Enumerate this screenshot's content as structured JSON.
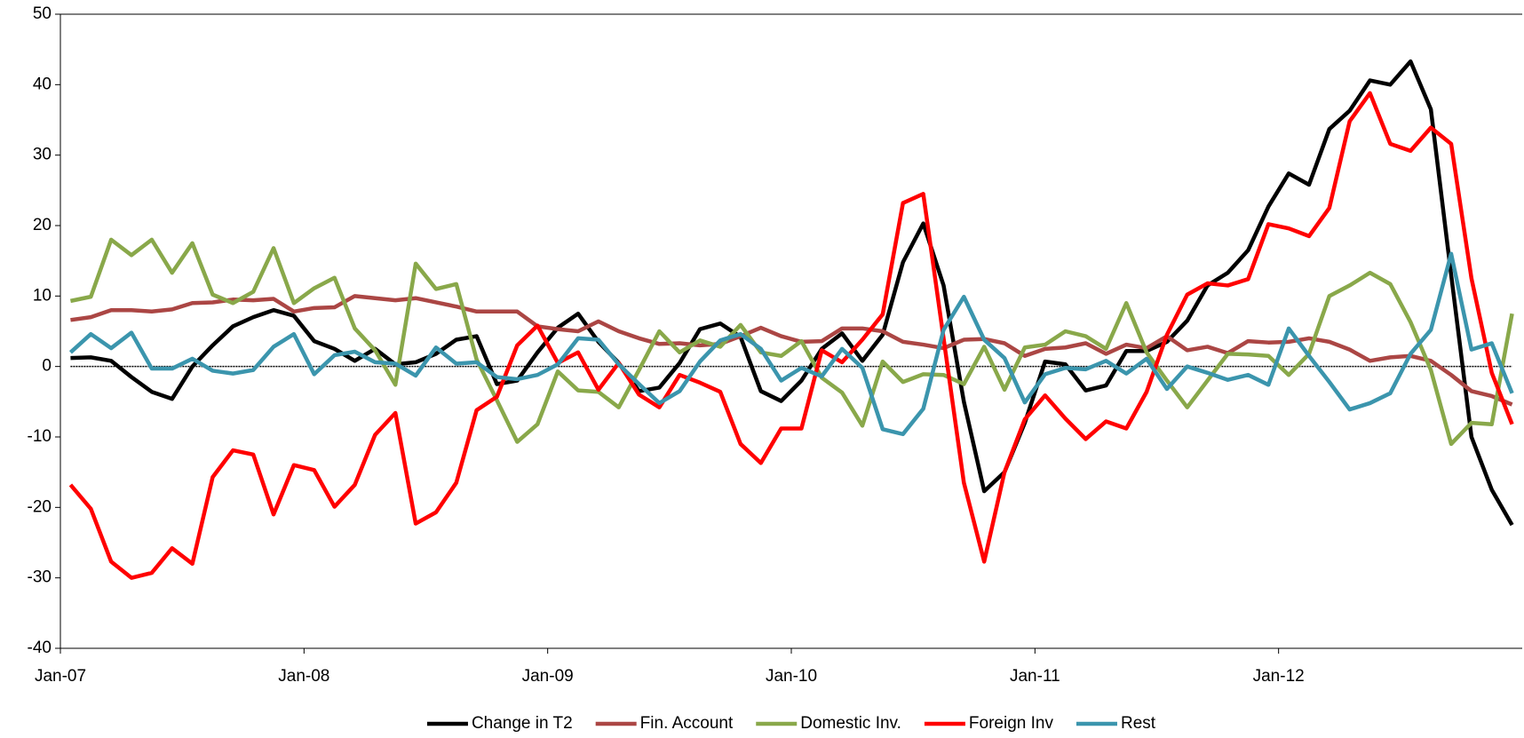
{
  "chart_data": {
    "type": "line",
    "categories": [
      "Jan-07",
      null,
      null,
      null,
      null,
      null,
      null,
      null,
      null,
      null,
      null,
      null,
      "Jan-08",
      null,
      null,
      null,
      null,
      null,
      null,
      null,
      null,
      null,
      null,
      null,
      "Jan-09",
      null,
      null,
      null,
      null,
      null,
      null,
      null,
      null,
      null,
      null,
      null,
      "Jan-10",
      null,
      null,
      null,
      null,
      null,
      null,
      null,
      null,
      null,
      null,
      null,
      "Jan-11",
      null,
      null,
      null,
      null,
      null,
      null,
      null,
      null,
      null,
      null,
      null,
      "Jan-12",
      null,
      null,
      null,
      null,
      null,
      null,
      null,
      null,
      null,
      null,
      null
    ],
    "series": [
      {
        "name": "Change in T2",
        "color": "#000000",
        "values": [
          1.2,
          1.3,
          0.8,
          -1.5,
          -3.6,
          -4.6,
          0,
          3,
          5.7,
          7,
          8,
          7.2,
          3.6,
          2.5,
          0.8,
          2.5,
          0.3,
          0.6,
          1.8,
          3.8,
          4.3,
          -2.5,
          -2,
          2,
          5.5,
          7.5,
          3.5,
          0.5,
          -3.5,
          -3,
          0.5,
          5.3,
          6.1,
          4.2,
          -3.5,
          -4.9,
          -2,
          2.5,
          4.7,
          0.8,
          4.5,
          14.8,
          20.3,
          11.5,
          -5,
          -17.7,
          -15,
          -8,
          0.7,
          0.3,
          -3.4,
          -2.7,
          2.2,
          2.2,
          3.5,
          6.5,
          11.5,
          13.3,
          16.5,
          22.7,
          27.4,
          25.8,
          33.7,
          36.3,
          40.6,
          40,
          43.3,
          36.5,
          13,
          -10,
          -17.5,
          -22.5
        ]
      },
      {
        "name": "Fin. Account",
        "color": "#ab4644",
        "values": [
          6.6,
          7,
          8,
          8,
          7.8,
          8.1,
          9,
          9.1,
          9.5,
          9.4,
          9.6,
          7.8,
          8.3,
          8.4,
          10,
          9.7,
          9.4,
          9.7,
          9.1,
          8.5,
          7.8,
          7.8,
          7.8,
          5.7,
          5.3,
          5,
          6.4,
          5,
          4,
          3.2,
          3.3,
          3,
          3.2,
          4.3,
          5.5,
          4.3,
          3.5,
          3.6,
          5.4,
          5.4,
          5,
          3.5,
          3.1,
          2.6,
          3.8,
          3.9,
          3.3,
          1.5,
          2.5,
          2.7,
          3.3,
          1.8,
          3.1,
          2.6,
          4.3,
          2.3,
          2.8,
          1.9,
          3.6,
          3.4,
          3.5,
          4,
          3.5,
          2.4,
          0.8,
          1.3,
          1.5,
          0.8,
          -1.2,
          -3.5,
          -4.2,
          -5.4
        ]
      },
      {
        "name": "Domestic Inv.",
        "color": "#89a84a",
        "values": [
          9.3,
          9.9,
          18,
          15.8,
          18,
          13.3,
          17.5,
          10.2,
          9,
          10.6,
          16.8,
          9,
          11.1,
          12.6,
          5.4,
          2.3,
          -2.6,
          14.6,
          11,
          11.7,
          1,
          -4.8,
          -10.7,
          -8.2,
          -0.7,
          -3.4,
          -3.6,
          -5.8,
          -0.5,
          5,
          2,
          3.7,
          2.8,
          5.9,
          2,
          1.5,
          3.6,
          -1.6,
          -3.7,
          -8.4,
          0.7,
          -2.2,
          -1.1,
          -1.2,
          -2.5,
          2.8,
          -3.3,
          2.7,
          3.1,
          5,
          4.3,
          2.5,
          9,
          2,
          -2,
          -5.8,
          -2,
          1.8,
          1.7,
          1.5,
          -1.2,
          1.8,
          10,
          11.5,
          13.3,
          11.7,
          6.3,
          -0.5,
          -11,
          -8,
          -8.2,
          7.5
        ]
      },
      {
        "name": "Foreign Inv",
        "color": "#ff0000",
        "values": [
          -16.8,
          -20.2,
          -27.7,
          -30,
          -29.3,
          -25.8,
          -28,
          -15.7,
          -11.9,
          -12.5,
          -21,
          -14,
          -14.7,
          -19.9,
          -16.8,
          -9.7,
          -6.6,
          -22.3,
          -20.7,
          -16.5,
          -6.2,
          -4.3,
          3,
          5.8,
          0.5,
          2,
          -3.3,
          0.5,
          -4,
          -5.8,
          -1.2,
          -2.3,
          -3.6,
          -11,
          -13.7,
          -8.8,
          -8.8,
          2.3,
          0.6,
          3.8,
          7.4,
          23.2,
          24.5,
          4,
          -16.5,
          -27.7,
          -15,
          -7.5,
          -4.1,
          -7.4,
          -10.3,
          -7.8,
          -8.8,
          -3.6,
          4.5,
          10.2,
          11.8,
          11.5,
          12.4,
          20.2,
          19.6,
          18.5,
          22.5,
          34.8,
          38.8,
          31.6,
          30.6,
          33.9,
          31.6,
          12.5,
          -0.9,
          -8.2
        ]
      },
      {
        "name": "Rest",
        "color": "#3b95ad",
        "values": [
          2,
          4.6,
          2.6,
          4.8,
          -0.3,
          -0.3,
          1.1,
          -0.6,
          -1,
          -0.5,
          2.8,
          4.6,
          -1.1,
          1.6,
          2.1,
          0.6,
          0.4,
          -1.3,
          2.7,
          0.4,
          0.6,
          -1.5,
          -1.8,
          -1.2,
          0.3,
          4,
          3.8,
          0.3,
          -2.5,
          -5.2,
          -3.5,
          0.7,
          3.7,
          4.6,
          2.5,
          -2,
          -0.2,
          -1.4,
          2.5,
          -0.2,
          -8.9,
          -9.6,
          -6,
          5.2,
          9.9,
          3.8,
          1.2,
          -5.1,
          -1.1,
          -0.2,
          -0.4,
          0.8,
          -1,
          1.1,
          -3.2,
          0,
          -0.9,
          -1.9,
          -1.2,
          -2.6,
          5.4,
          1.5,
          -2.2,
          -6.1,
          -5.2,
          -3.8,
          1.8,
          5.2,
          16,
          2.4,
          3.3,
          -3.8
        ]
      }
    ],
    "ylim": [
      -40,
      50
    ],
    "yticks": [
      -40,
      -30,
      -20,
      -10,
      0,
      10,
      20,
      30,
      40,
      50
    ],
    "grid": false,
    "legend": "bottom"
  }
}
